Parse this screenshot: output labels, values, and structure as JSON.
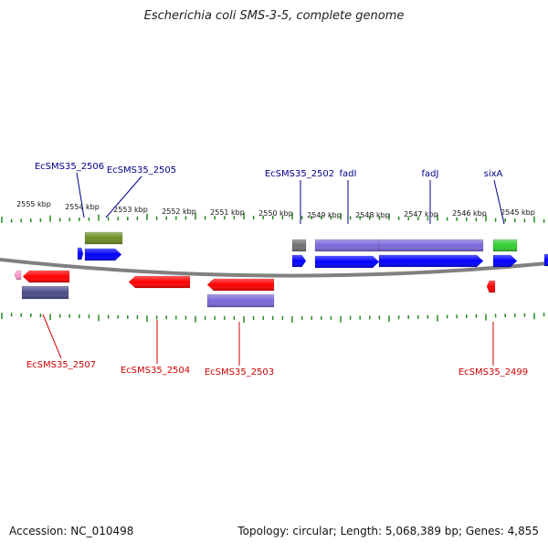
{
  "title": "Escherichia coli SMS-3-5, complete genome",
  "footer": {
    "accession": "Accession: NC_010498",
    "topology": "Topology: circular; Length: 5,068,389 bp; Genes: 4,855"
  },
  "colors": {
    "backbone": "#808080",
    "tick": "#228B22",
    "cds_forward": "#0000ff",
    "cds_reverse": "#ff0000",
    "gene_feature": "#7b68d8",
    "gene_dark": "#4b4b8b",
    "rna_olive": "#6b8e23",
    "pseudo_grey": "#707070",
    "green_feature": "#32cd32",
    "pink_feature": "#ff99cc",
    "forward_label": "#00008b",
    "reverse_label": "#cc0000"
  },
  "scale": {
    "kbp_labels": [
      "2555 kbp",
      "2554 kbp",
      "2553 kbp",
      "2552 kbp",
      "2551 kbp",
      "2550 kbp",
      "2549 kbp",
      "2548 kbp",
      "2547 kbp",
      "2546 kbp",
      "2545 kbp"
    ]
  },
  "forward_labels": [
    "EcSMS35_2506",
    "EcSMS35_2505",
    "EcSMS35_2502",
    "fadI",
    "fadJ",
    "sixA"
  ],
  "reverse_labels": [
    "EcSMS35_2507",
    "EcSMS35_2504",
    "EcSMS35_2503",
    "EcSMS35_2499"
  ]
}
